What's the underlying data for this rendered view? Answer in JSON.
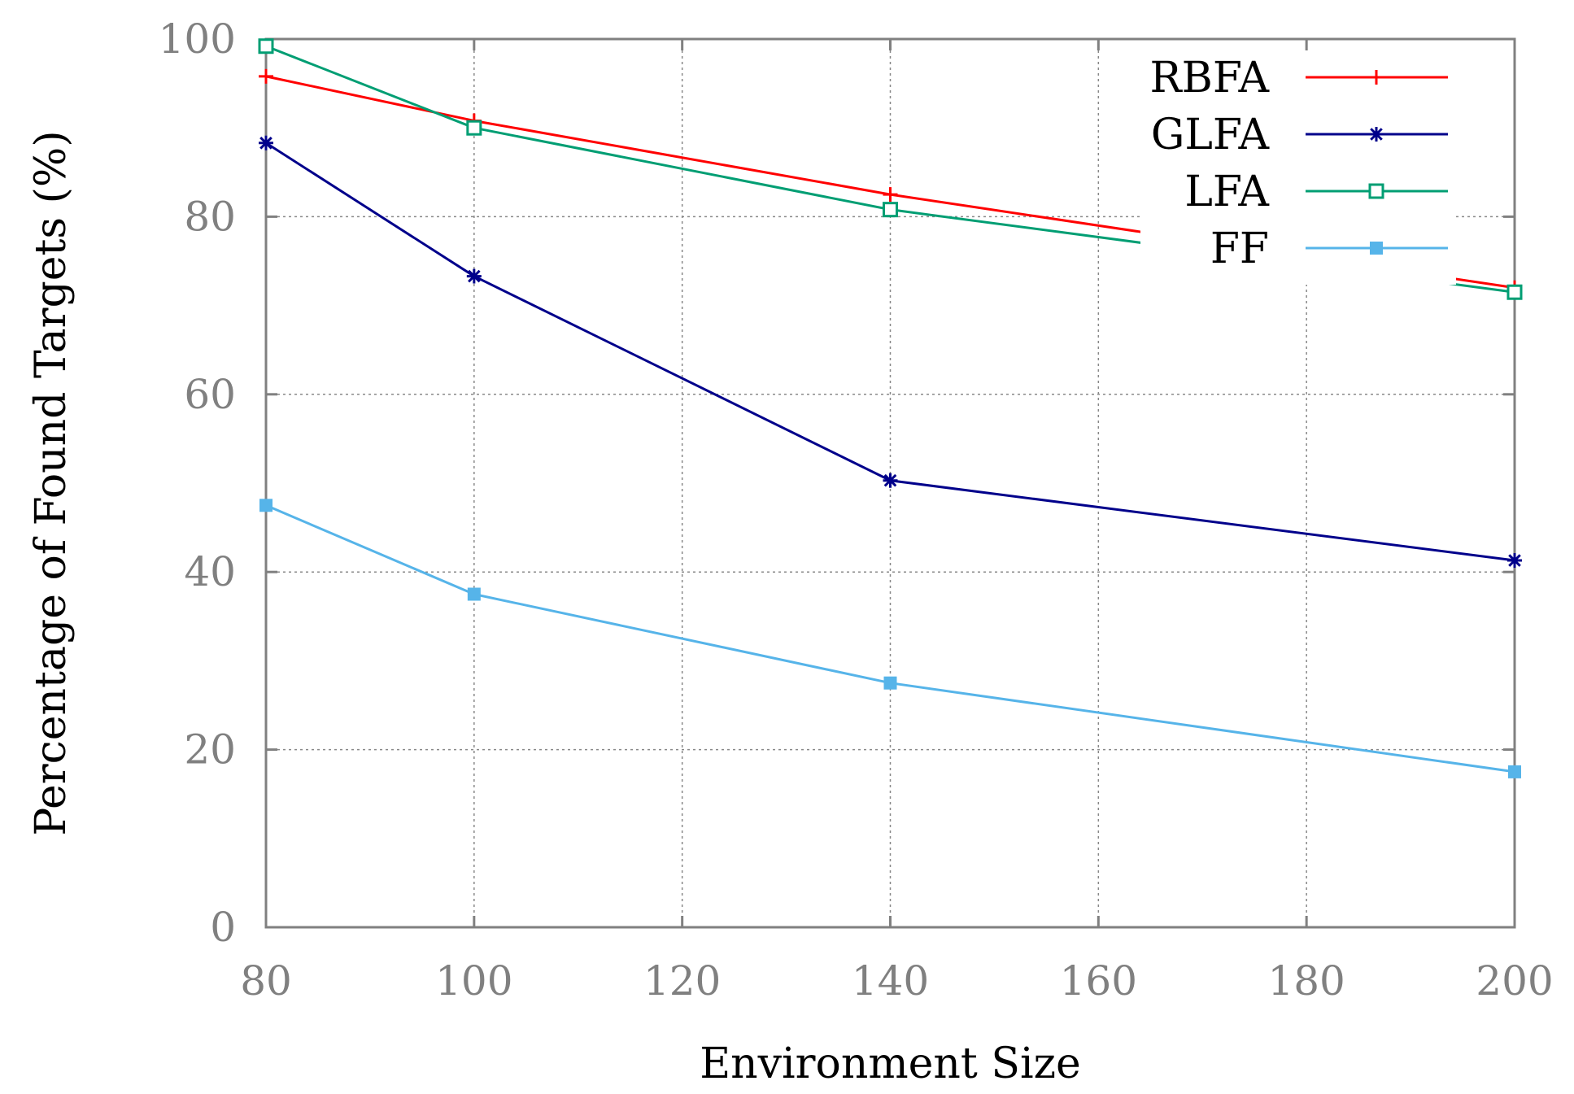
{
  "chart_data": {
    "type": "line",
    "title": "",
    "xlabel": "Environment Size",
    "ylabel": "Percentage of Found Targets (%)",
    "xlim": [
      80,
      200
    ],
    "ylim": [
      0,
      100
    ],
    "xticks": [
      80,
      100,
      120,
      140,
      160,
      180,
      200
    ],
    "yticks": [
      0,
      20,
      40,
      60,
      80,
      100
    ],
    "xtick_labels": [
      "80",
      "100",
      "120",
      "140",
      "160",
      "180",
      "200"
    ],
    "ytick_labels": [
      "0",
      "20",
      "40",
      "60",
      "80",
      "100"
    ],
    "grid": true,
    "legend_position": "top-right",
    "x": [
      80,
      100,
      140,
      200
    ],
    "series": [
      {
        "name": "RBFA",
        "color": "#ff0000",
        "marker": "plus",
        "values": [
          95.8,
          90.8,
          82.5,
          72.0
        ]
      },
      {
        "name": "GLFA",
        "color": "#00008b",
        "marker": "star",
        "values": [
          88.3,
          73.3,
          50.3,
          41.3
        ]
      },
      {
        "name": "LFA",
        "color": "#009e73",
        "marker": "open-square",
        "values": [
          99.2,
          90.0,
          80.8,
          71.5
        ]
      },
      {
        "name": "FF",
        "color": "#56b4e9",
        "marker": "filled-square",
        "values": [
          47.5,
          37.5,
          27.5,
          17.5
        ]
      }
    ]
  }
}
